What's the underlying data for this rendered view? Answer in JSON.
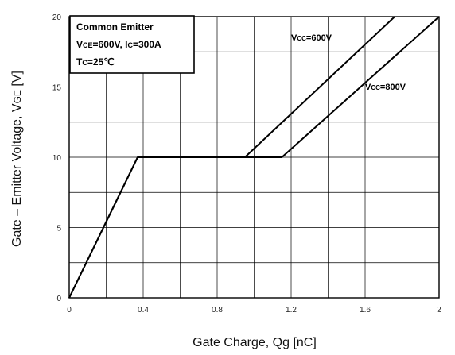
{
  "chart_data": {
    "type": "line",
    "xlabel": "Gate Charge, Qg  [nC]",
    "ylabel": "Gate – Emitter Voltage, V",
    "ylabel_sub": "GE",
    "ylabel_tail": " [V]",
    "xlim": [
      0,
      2
    ],
    "ylim": [
      0,
      20
    ],
    "x_ticks": [
      0,
      0.2,
      0.4,
      0.6,
      0.8,
      1.0,
      1.2,
      1.4,
      1.6,
      1.8,
      2.0
    ],
    "x_tick_labels": [
      "0",
      "",
      "0.4",
      "",
      "0.8",
      "",
      "1.2",
      "",
      "1.6",
      "",
      "2"
    ],
    "y_ticks": [
      0,
      2.5,
      5,
      7.5,
      10,
      12.5,
      15,
      17.5,
      20
    ],
    "y_tick_labels": [
      "0",
      "",
      "5",
      "",
      "10",
      "",
      "15",
      "",
      "20"
    ],
    "grid": true,
    "annotation": {
      "line1": "Common Emitter",
      "line2_a": "V",
      "line2_a_sub": "CE",
      "line2_b": "=600V, I",
      "line2_b_sub": "C",
      "line2_c": "=300A",
      "line3_a": "T",
      "line3_a_sub": "C",
      "line3_b": "=25℃"
    },
    "series": [
      {
        "label_main": "V",
        "label_sub": "CC",
        "label_tail": "=600V",
        "x": [
          0,
          0.37,
          0.95,
          1.76
        ],
        "y": [
          0,
          10,
          10,
          20
        ],
        "label_at": [
          1.2,
          18.3
        ]
      },
      {
        "label_main": "V",
        "label_sub": "CC",
        "label_tail": "=800V",
        "x": [
          0,
          0.37,
          1.15,
          2.0
        ],
        "y": [
          0,
          10,
          10,
          20
        ],
        "label_at": [
          1.6,
          14.8
        ]
      }
    ]
  }
}
